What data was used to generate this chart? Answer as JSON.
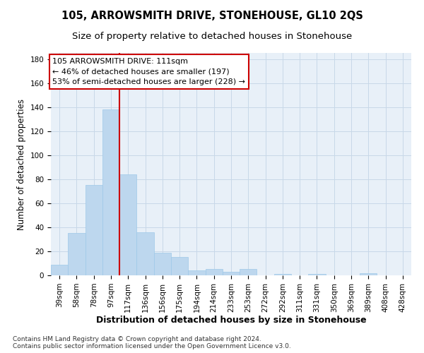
{
  "title": "105, ARROWSMITH DRIVE, STONEHOUSE, GL10 2QS",
  "subtitle": "Size of property relative to detached houses in Stonehouse",
  "xlabel": "Distribution of detached houses by size in Stonehouse",
  "ylabel": "Number of detached properties",
  "categories": [
    "39sqm",
    "58sqm",
    "78sqm",
    "97sqm",
    "117sqm",
    "136sqm",
    "156sqm",
    "175sqm",
    "194sqm",
    "214sqm",
    "233sqm",
    "253sqm",
    "272sqm",
    "292sqm",
    "311sqm",
    "331sqm",
    "350sqm",
    "369sqm",
    "389sqm",
    "408sqm",
    "428sqm"
  ],
  "values": [
    9,
    35,
    75,
    138,
    84,
    36,
    19,
    15,
    4,
    5,
    3,
    5,
    0,
    1,
    0,
    1,
    0,
    0,
    2,
    0,
    0
  ],
  "bar_color": "#bdd7ee",
  "bar_edgecolor": "#9ec8e8",
  "vline_color": "#cc0000",
  "vline_x_index": 4,
  "annotation_text": "105 ARROWSMITH DRIVE: 111sqm\n← 46% of detached houses are smaller (197)\n53% of semi-detached houses are larger (228) →",
  "annotation_box_color": "#ffffff",
  "annotation_box_edgecolor": "#cc0000",
  "ylim": [
    0,
    185
  ],
  "yticks": [
    0,
    20,
    40,
    60,
    80,
    100,
    120,
    140,
    160,
    180
  ],
  "grid_color": "#c8d8e8",
  "bg_color": "#e8f0f8",
  "footer": "Contains HM Land Registry data © Crown copyright and database right 2024.\nContains public sector information licensed under the Open Government Licence v3.0.",
  "title_fontsize": 10.5,
  "subtitle_fontsize": 9.5,
  "xlabel_fontsize": 9,
  "ylabel_fontsize": 8.5,
  "tick_fontsize": 7.5,
  "annotation_fontsize": 8,
  "footer_fontsize": 6.5
}
